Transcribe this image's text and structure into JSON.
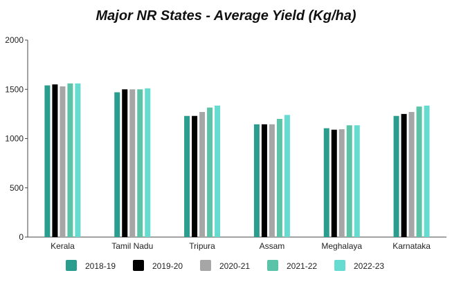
{
  "chart_data": {
    "type": "bar",
    "title": "Major NR States - Average Yield (Kg/ha)",
    "xlabel": "",
    "ylabel": "",
    "ylim": [
      0,
      2000
    ],
    "yticks": [
      0,
      500,
      1000,
      1500,
      2000
    ],
    "grid": false,
    "legend_position": "bottom",
    "categories": [
      "Kerala",
      "Tamil Nadu",
      "Tripura",
      "Assam",
      "Meghalaya",
      "Karnataka"
    ],
    "series": [
      {
        "name": "2018-19",
        "color": "#2a9d8f",
        "values": [
          1540,
          1470,
          1230,
          1145,
          1105,
          1230
        ]
      },
      {
        "name": "2019-20",
        "color": "#000000",
        "values": [
          1550,
          1500,
          1230,
          1145,
          1090,
          1250
        ]
      },
      {
        "name": "2020-21",
        "color": "#a6a6a6",
        "values": [
          1530,
          1500,
          1270,
          1145,
          1095,
          1270
        ]
      },
      {
        "name": "2021-22",
        "color": "#5bc4a8",
        "values": [
          1560,
          1500,
          1315,
          1200,
          1135,
          1325
        ]
      },
      {
        "name": "2022-23",
        "color": "#66dbd0",
        "values": [
          1560,
          1510,
          1335,
          1240,
          1135,
          1335
        ]
      }
    ]
  }
}
